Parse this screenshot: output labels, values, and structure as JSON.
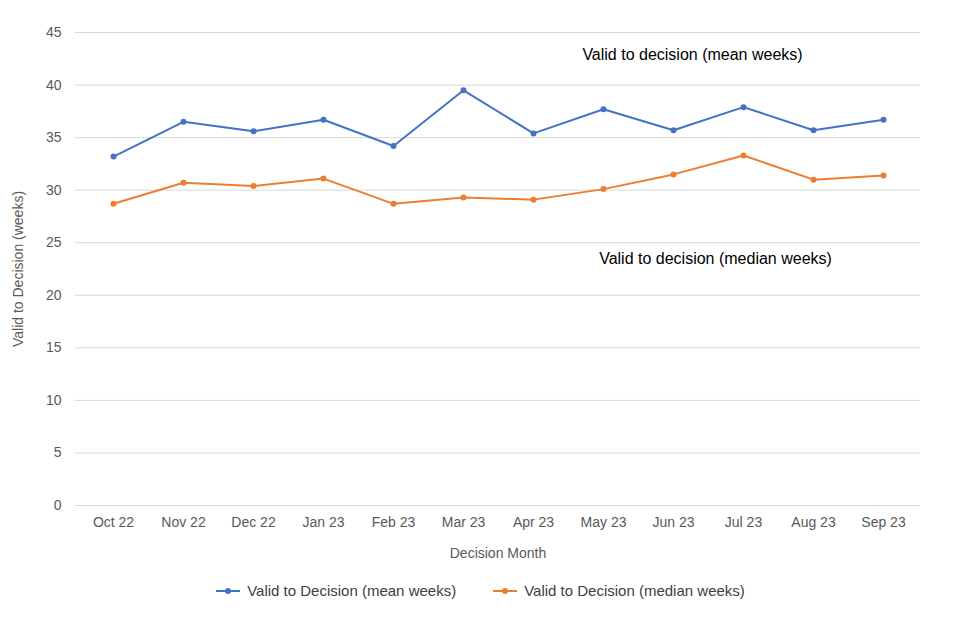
{
  "chart_data": {
    "type": "line",
    "x_label": "Decision Month",
    "y_label": "Valid to Decision (weeks)",
    "categories": [
      "Oct 22",
      "Nov 22",
      "Dec 22",
      "Jan 23",
      "Feb 23",
      "Mar 23",
      "Apr 23",
      "May 23",
      "Jun 23",
      "Jul 23",
      "Aug 23",
      "Sep 23"
    ],
    "series": [
      {
        "name": "Valid to Decision (mean weeks)",
        "color": "#4472c4",
        "marker": "circle",
        "values": [
          33.2,
          36.5,
          35.6,
          36.7,
          34.2,
          39.5,
          35.4,
          37.7,
          35.7,
          37.9,
          35.7,
          36.7
        ]
      },
      {
        "name": "Valid to Decision (median weeks)",
        "color": "#ed7d31",
        "marker": "circle",
        "values": [
          28.7,
          30.7,
          30.4,
          31.1,
          28.7,
          29.3,
          29.1,
          30.1,
          31.5,
          33.3,
          31.0,
          31.4
        ]
      }
    ],
    "annotations": [
      "Valid to decision (mean weeks)",
      "Valid to decision (median weeks)"
    ],
    "ylim": [
      0,
      45
    ],
    "yticks": [
      0,
      5,
      10,
      15,
      20,
      25,
      30,
      35,
      40,
      45
    ],
    "grid": true,
    "legend": "bottom"
  }
}
